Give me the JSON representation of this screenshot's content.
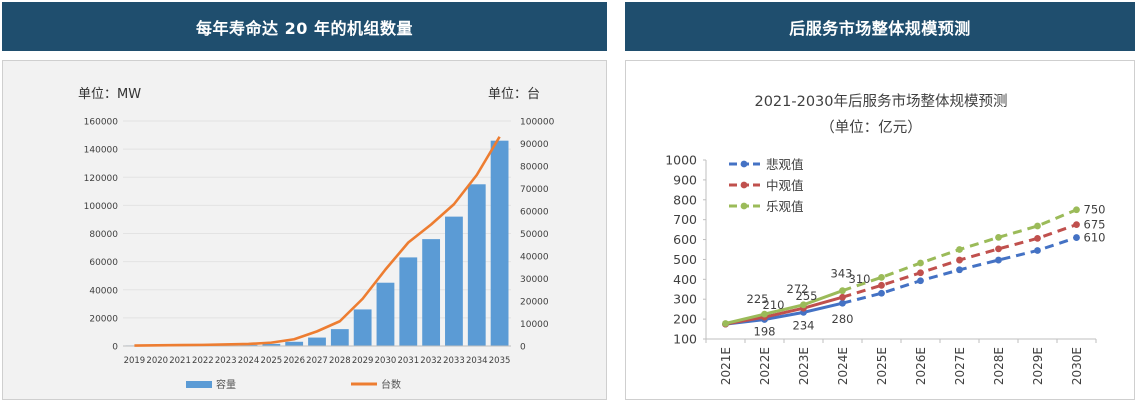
{
  "left_panel": {
    "header": "每年寿命达 20 年的机组数量"
  },
  "right_panel": {
    "header": "后服务市场整体规模预测"
  },
  "chart_data": [
    {
      "type": "bar",
      "y_unit_left": "单位：MW",
      "y_unit_right": "单位：台",
      "categories": [
        "2019",
        "2020",
        "2021",
        "2022",
        "2023",
        "2024",
        "2025",
        "2026",
        "2027",
        "2028",
        "2029",
        "2030",
        "2031",
        "2032",
        "2033",
        "2034",
        "2035"
      ],
      "yticks_left": [
        "0",
        "20000",
        "40000",
        "60000",
        "80000",
        "100000",
        "120000",
        "140000",
        "160000"
      ],
      "yticks_right": [
        "0",
        "10000",
        "20000",
        "30000",
        "40000",
        "50000",
        "60000",
        "70000",
        "80000",
        "90000",
        "100000"
      ],
      "ylim_left": [
        0,
        160000
      ],
      "ylim_right": [
        0,
        100000
      ],
      "series": [
        {
          "name": "容量",
          "type": "bar",
          "axis": "left",
          "color": "#5b9bd5",
          "values": [
            400,
            450,
            500,
            550,
            650,
            800,
            1500,
            3000,
            6000,
            12000,
            26000,
            45000,
            63000,
            76000,
            92000,
            115000,
            146000
          ]
        },
        {
          "name": "台数",
          "type": "line",
          "axis": "right",
          "color": "#ed7d31",
          "values": [
            200,
            300,
            400,
            500,
            700,
            900,
            1500,
            3000,
            6500,
            11000,
            21000,
            34000,
            46000,
            54000,
            63000,
            76000,
            93000
          ]
        }
      ],
      "legend_position": "bottom"
    },
    {
      "type": "line",
      "title": "2021-2030年后服务市场整体规模预测",
      "subtitle": "（单位：亿元）",
      "x": [
        "2021E",
        "2022E",
        "2023E",
        "2024E",
        "2025E",
        "2026E",
        "2027E",
        "2028E",
        "2029E",
        "2030E"
      ],
      "yticks": [
        "100",
        "200",
        "300",
        "400",
        "500",
        "600",
        "700",
        "800",
        "900",
        "1000"
      ],
      "ylim": [
        100,
        1000
      ],
      "series": [
        {
          "name": "悲观值",
          "color": "#4472c4",
          "values": [
            175,
            198,
            234,
            280,
            330,
            393,
            448,
            497,
            545,
            610
          ],
          "labels": [
            "",
            "198",
            "234",
            "280",
            "",
            "",
            "",
            "",
            "",
            "610"
          ]
        },
        {
          "name": "中观值",
          "color": "#c0504d",
          "values": [
            175,
            210,
            255,
            310,
            370,
            433,
            497,
            553,
            606,
            675
          ],
          "labels": [
            "",
            "210",
            "255",
            "310",
            "",
            "",
            "",
            "",
            "",
            "675"
          ]
        },
        {
          "name": "乐观值",
          "color": "#9bbb59",
          "values": [
            178,
            225,
            272,
            343,
            410,
            482,
            550,
            611,
            668,
            750
          ],
          "labels": [
            "",
            "225",
            "272",
            "343",
            "",
            "",
            "",
            "",
            "",
            "750"
          ]
        }
      ],
      "legend_position": "top-left"
    }
  ]
}
